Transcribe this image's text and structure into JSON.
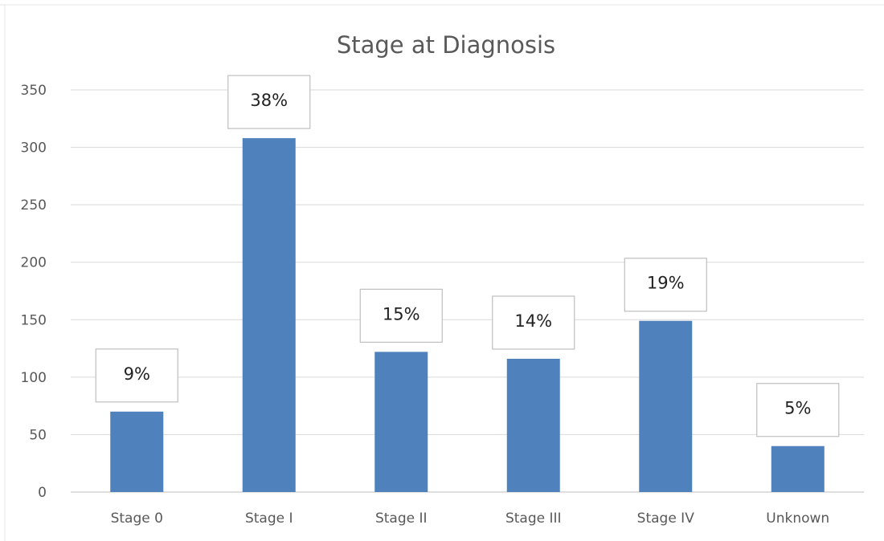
{
  "chart_data": {
    "type": "bar",
    "title": "Stage at Diagnosis",
    "xlabel": "",
    "ylabel": "",
    "categories": [
      "Stage 0",
      "Stage I",
      "Stage II",
      "Stage III",
      "Stage IV",
      "Unknown"
    ],
    "values": [
      70,
      308,
      122,
      116,
      149,
      40
    ],
    "data_labels": [
      "9%",
      "38%",
      "15%",
      "14%",
      "19%",
      "5%"
    ],
    "ylim": [
      0,
      350
    ],
    "yticks": [
      0,
      50,
      100,
      150,
      200,
      250,
      300,
      350
    ],
    "grid": true,
    "legend": "none",
    "colors": {
      "bar": "#4f81bd",
      "gridline": "#d9d9d9",
      "axis": "#bfbfbf",
      "label_box_border": "#bfbfbf",
      "text": "#595959"
    }
  }
}
